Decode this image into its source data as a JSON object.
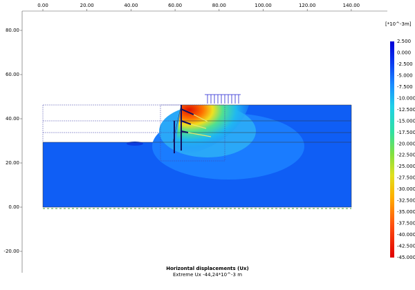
{
  "axes": {
    "x_ticks": [
      "0.00",
      "20.00",
      "40.00",
      "60.00",
      "80.00",
      "100.00",
      "120.00",
      "140.00"
    ],
    "y_ticks": [
      "80.00",
      "60.00",
      "40.00",
      "20.00",
      "0.00",
      "-20.00"
    ]
  },
  "legend": {
    "unit": "[*10^-3m]",
    "labels": [
      "2.500",
      "0.000",
      "-2.500",
      "-5.000",
      "-7.500",
      "-10.000",
      "-12.500",
      "-15.000",
      "-17.500",
      "-20.000",
      "-22.500",
      "-25.000",
      "-27.500",
      "-30.000",
      "-32.500",
      "-35.000",
      "-37.500",
      "-40.000",
      "-42.500",
      "-45.000"
    ]
  },
  "caption": {
    "title": "Horizontal displacements (Ux)",
    "subtitle": "Extreme Ux -44,24*10^-3 m"
  }
}
